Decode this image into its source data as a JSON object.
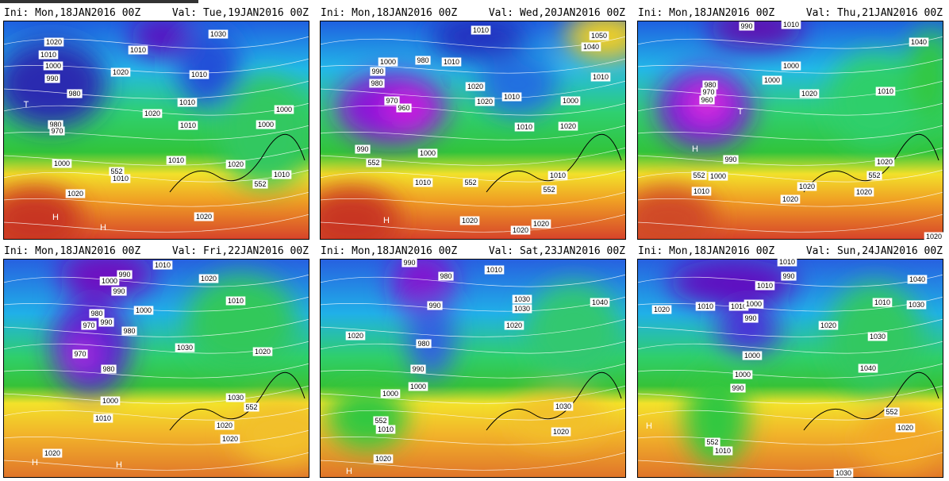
{
  "panels": [
    {
      "init": "Ini: Mon,18JAN2016 00Z",
      "valid": "Val: Tue,19JAN2016 00Z",
      "labels": [
        "1020",
        "1010",
        "1000",
        "990",
        "980",
        "980",
        "970",
        "1010",
        "1020",
        "1030",
        "1010",
        "1010",
        "1020",
        "1010",
        "1010",
        "1020",
        "1000",
        "1000",
        "1010",
        "1000",
        "552",
        "1010",
        "1020",
        "1020",
        "552",
        "H",
        "H",
        "T"
      ]
    },
    {
      "init": "Ini: Mon,18JAN2016 00Z",
      "valid": "Val: Wed,20JAN2016 00Z",
      "labels": [
        "1010",
        "1050",
        "1040",
        "1000",
        "990",
        "980",
        "980",
        "970",
        "960",
        "1010",
        "1020",
        "1020",
        "1010",
        "1000",
        "1010",
        "1020",
        "1010",
        "990",
        "1000",
        "552",
        "1010",
        "552",
        "1010",
        "552",
        "1020",
        "1020",
        "1020",
        "H"
      ]
    },
    {
      "init": "Ini: Mon,18JAN2016 00Z",
      "valid": "Val: Thu,21JAN2016 00Z",
      "labels": [
        "990",
        "1010",
        "1040",
        "1000",
        "1000",
        "980",
        "970",
        "960",
        "1020",
        "1010",
        "990",
        "552",
        "1000",
        "1010",
        "1020",
        "552",
        "1020",
        "1020",
        "1020",
        "1020",
        "H",
        "T"
      ]
    },
    {
      "init": "Ini: Mon,18JAN2016 00Z",
      "valid": "Val: Fri,22JAN2016 00Z",
      "labels": [
        "1010",
        "1020",
        "990",
        "1000",
        "990",
        "1000",
        "1010",
        "980",
        "970",
        "990",
        "980",
        "970",
        "980",
        "1030",
        "1020",
        "1030",
        "552",
        "1000",
        "1010",
        "1020",
        "1020",
        "1020",
        "H",
        "H"
      ]
    },
    {
      "init": "Ini: Mon,18JAN2016 00Z",
      "valid": "Val: Sat,23JAN2016 00Z",
      "labels": [
        "990",
        "1010",
        "980",
        "990",
        "1030",
        "1030",
        "1040",
        "1020",
        "1020",
        "980",
        "990",
        "1000",
        "1000",
        "552",
        "1010",
        "1030",
        "1020",
        "1020",
        "H"
      ]
    },
    {
      "init": "Ini: Mon,18JAN2016 00Z",
      "valid": "Val: Sun,24JAN2016 00Z",
      "labels": [
        "1010",
        "990",
        "1040",
        "1010",
        "1010",
        "1010",
        "1000",
        "990",
        "1020",
        "1010",
        "1030",
        "1020",
        "1030",
        "1000",
        "1040",
        "1000",
        "990",
        "552",
        "1020",
        "552",
        "1010",
        "1030",
        "H"
      ]
    }
  ]
}
